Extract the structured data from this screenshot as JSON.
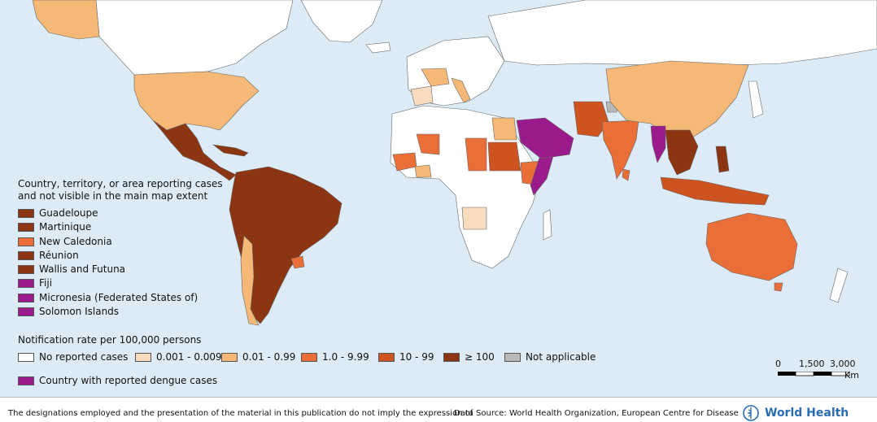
{
  "colors": {
    "ocean": "#dcebf5",
    "no_cases": "#ffffff",
    "tier1": "#f8dcc0",
    "tier2": "#f5b876",
    "tier3": "#e96e38",
    "tier4": "#cd5420",
    "tier5": "#8b3513",
    "not_applicable": "#b8b8b8",
    "dengue": "#9c1b8c",
    "brand": "#2a6db5"
  },
  "small_areas": {
    "title_line1": "Country, territory, or area reporting cases",
    "title_line2": "and not visible in the main map extent",
    "items": [
      {
        "label": "Guadeloupe",
        "color": "#8b3513"
      },
      {
        "label": "Martinique",
        "color": "#8b3513"
      },
      {
        "label": "New Caledonia",
        "color": "#e96e38"
      },
      {
        "label": "Réunion",
        "color": "#8b3513"
      },
      {
        "label": "Wallis and Futuna",
        "color": "#8b3513"
      },
      {
        "label": "Fiji",
        "color": "#9c1b8c"
      },
      {
        "label": "Micronesia (Federated States of)",
        "color": "#9c1b8c"
      },
      {
        "label": "Solomon Islands",
        "color": "#9c1b8c"
      }
    ]
  },
  "rate_legend": {
    "title": "Notification rate per 100,000 persons",
    "items": [
      {
        "label": "No reported cases",
        "color": "#ffffff"
      },
      {
        "label": "0.001 - 0.009",
        "color": "#f8dcc0"
      },
      {
        "label": "0.01 - 0.99",
        "color": "#f5b876"
      },
      {
        "label": "1.0 - 9.99",
        "color": "#e96e38"
      },
      {
        "label": "10 - 99",
        "color": "#cd5420"
      },
      {
        "label": "≥ 100",
        "color": "#8b3513"
      },
      {
        "label": "Not applicable",
        "color": "#b8b8b8"
      }
    ],
    "dengue_label": "Country with reported dengue cases"
  },
  "scale_bar": {
    "t0": "0",
    "t1": "1,500",
    "t2": "3,000",
    "unit": "Km"
  },
  "footer": {
    "disclaimer": "The designations employed and the presentation of the material in this publication do not imply the expression of",
    "source": "Data Source: World Health Organization, European Centre for Disease",
    "org": "World Health"
  }
}
